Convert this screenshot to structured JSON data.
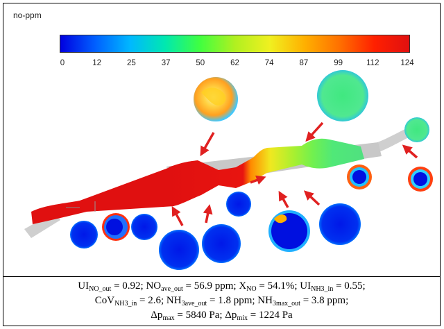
{
  "figure": {
    "legend_title": "no-ppm",
    "colorbar": {
      "ticks": [
        "0",
        "12",
        "25",
        "37",
        "50",
        "62",
        "74",
        "87",
        "99",
        "112",
        "124"
      ],
      "colors": [
        "#0000e0",
        "#0060ff",
        "#00b8ff",
        "#00e8b0",
        "#40ff40",
        "#b0f020",
        "#f0f020",
        "#ffb000",
        "#ff7000",
        "#ff2000",
        "#e01010"
      ]
    }
  },
  "caption": {
    "line1": [
      {
        "t": "UI"
      },
      {
        "sub": "NO_out"
      },
      {
        "t": " = 0.92; NO"
      },
      {
        "sub": "ave_out"
      },
      {
        "t": " = 56.9 ppm; X"
      },
      {
        "sub": "NO"
      },
      {
        "t": " = 54.1%; UI"
      },
      {
        "sub": "NH3_in"
      },
      {
        "t": " = 0.55;"
      }
    ],
    "line2": [
      {
        "t": "CoV"
      },
      {
        "sub": "NH3_in"
      },
      {
        "t": " = 2.6; NH"
      },
      {
        "sub": "3ave_out"
      },
      {
        "t": " = 1.8 ppm; NH"
      },
      {
        "sub": "3max_out"
      },
      {
        "t": " = 3.8 ppm;"
      }
    ],
    "line3": [
      {
        "t": "Δp"
      },
      {
        "sub": "max"
      },
      {
        "t": " = 5840 Pa; Δp"
      },
      {
        "sub": "mix"
      },
      {
        "t": " = 1224 Pa"
      }
    ]
  }
}
